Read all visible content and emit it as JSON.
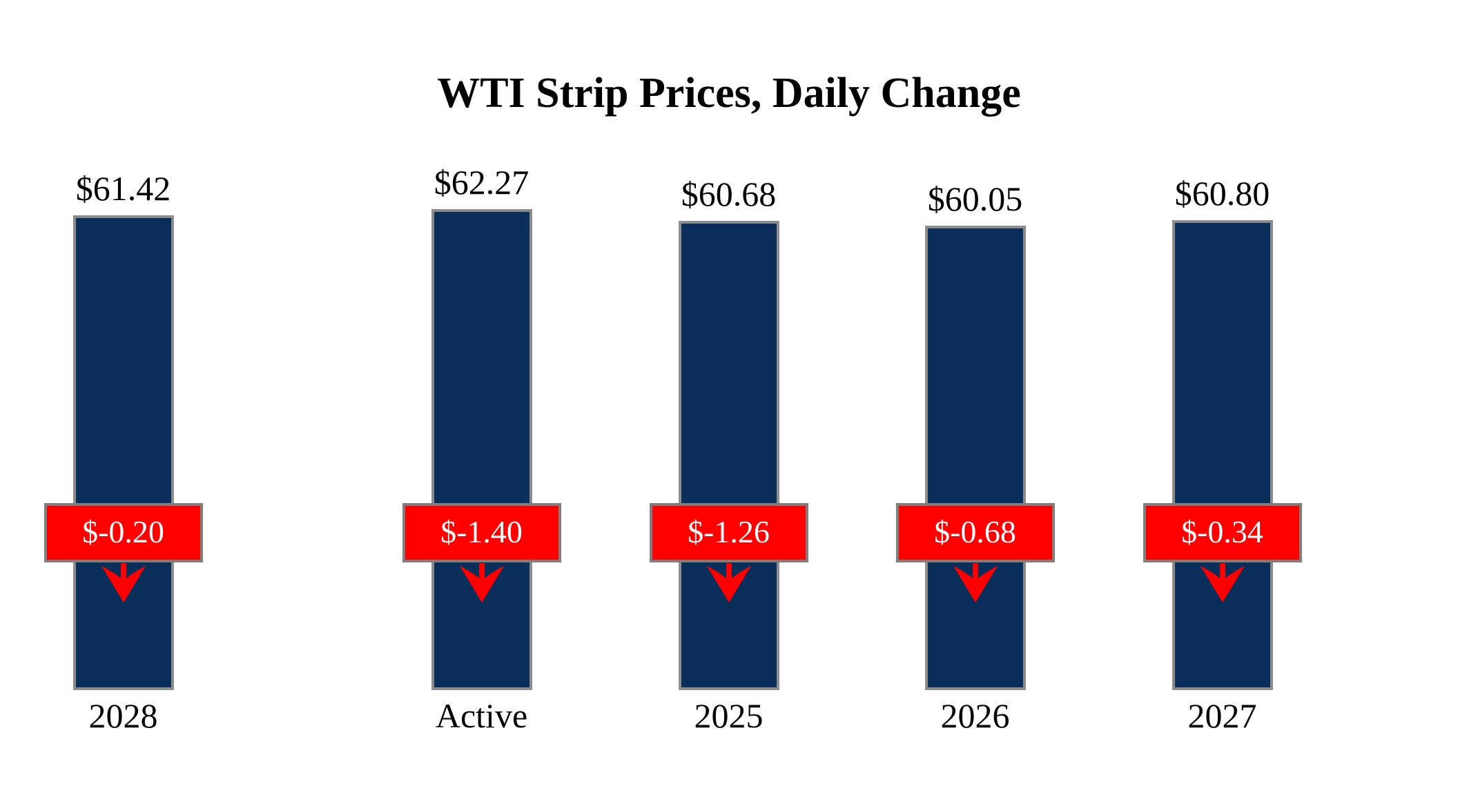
{
  "title": "WTI Strip Prices, Daily Change",
  "colors": {
    "bg": "#FFFFFF",
    "text": "#000000",
    "bar": "#0A2F5B",
    "bar_border": "#8C8C8C",
    "badge": "#FF0000",
    "badge_border": "#7F7F7F",
    "badge_text": "#FFFFFF",
    "arrow": "#FF0000"
  },
  "chart_data": {
    "type": "bar",
    "title": "WTI Strip Prices, Daily Change",
    "categories": [
      "Active",
      "2025",
      "2026",
      "2027",
      "2028"
    ],
    "series": [
      {
        "name": "Strip Price",
        "values": [
          62.27,
          60.68,
          60.05,
          60.8,
          61.42
        ],
        "labels": [
          "$62.27",
          "$60.68",
          "$60.05",
          "$60.80",
          "$61.42"
        ]
      },
      {
        "name": "Daily Change",
        "values": [
          -1.4,
          -1.26,
          -0.68,
          -0.34,
          -0.2
        ],
        "labels": [
          "$-1.40",
          "$-1.26",
          "$-0.68",
          "$-0.34",
          "$-0.20"
        ]
      }
    ],
    "ylim": [
      0,
      62.27
    ],
    "grid": false,
    "legend": "none",
    "columns": [
      {
        "category": "Active",
        "price": 62.27,
        "price_label": "$62.27",
        "change": -1.4,
        "change_label": "$-1.40"
      },
      {
        "category": "2025",
        "price": 60.68,
        "price_label": "$60.68",
        "change": -1.26,
        "change_label": "$-1.26"
      },
      {
        "category": "2026",
        "price": 60.05,
        "price_label": "$60.05",
        "change": -0.68,
        "change_label": "$-0.68"
      },
      {
        "category": "2027",
        "price": 60.8,
        "price_label": "$60.80",
        "change": -0.34,
        "change_label": "$-0.34"
      },
      {
        "category": "2028",
        "price": 61.42,
        "price_label": "$61.42",
        "change": -0.2,
        "change_label": "$-0.20"
      }
    ]
  }
}
